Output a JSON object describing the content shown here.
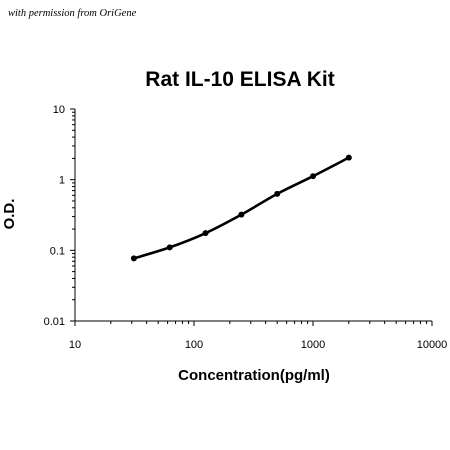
{
  "watermark": "with permission from OriGene",
  "chart_data": {
    "type": "line",
    "title": "Rat IL-10 ELISA Kit",
    "xlabel": "Concentration(pg/ml)",
    "ylabel": "O.D.",
    "xscale": "log",
    "yscale": "log",
    "xlim": [
      10,
      10000
    ],
    "ylim": [
      0.01,
      10
    ],
    "xticks": [
      "10",
      "100",
      "1000",
      "10000"
    ],
    "yticks": [
      "0.01",
      "0.1",
      "1",
      "10"
    ],
    "grid": false,
    "legend": "none",
    "line_color": "#000000",
    "series": [
      {
        "x": [
          31.25,
          62.5,
          125,
          250,
          500,
          1000,
          2000
        ],
        "y": [
          0.077,
          0.11,
          0.175,
          0.32,
          0.63,
          1.12,
          2.05
        ]
      }
    ]
  }
}
